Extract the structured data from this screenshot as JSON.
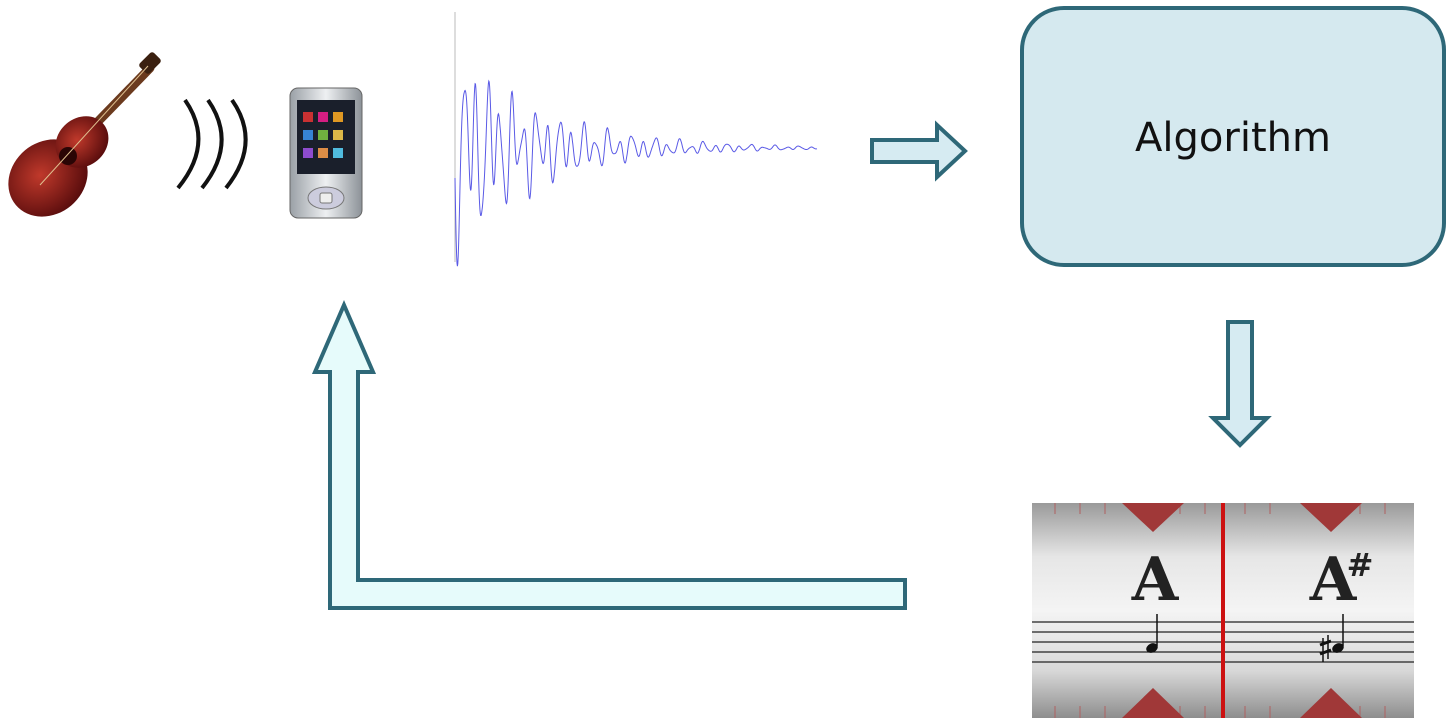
{
  "process_box": {
    "label": "Algorithm"
  },
  "tuner": {
    "notes": [
      {
        "letter": "A"
      },
      {
        "letter": "A",
        "accidental": "#"
      }
    ]
  }
}
